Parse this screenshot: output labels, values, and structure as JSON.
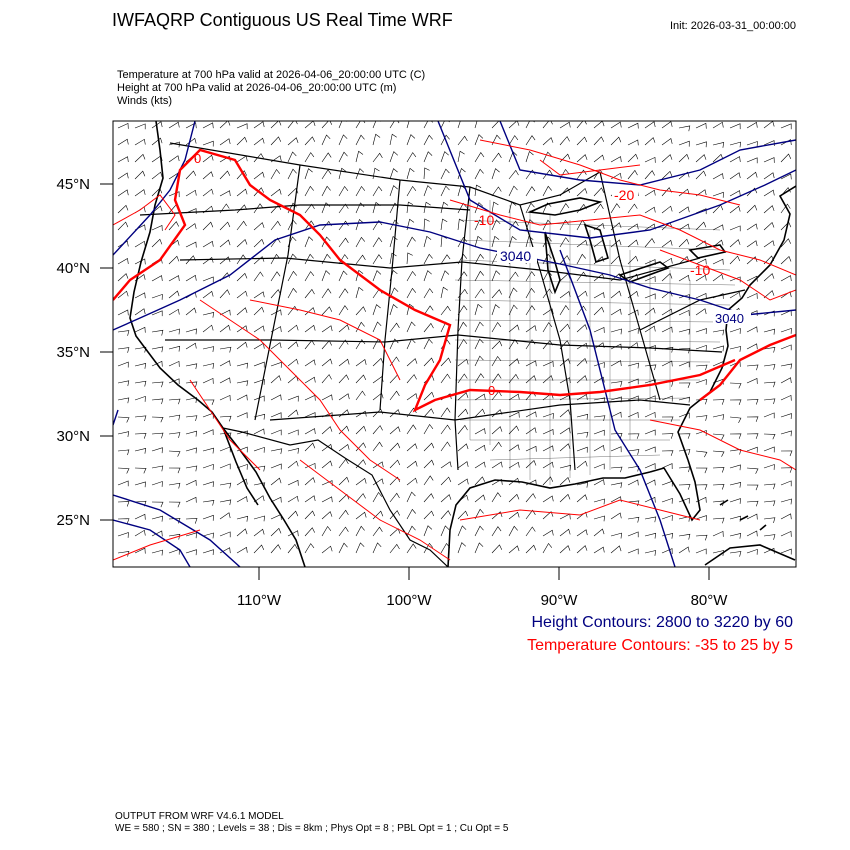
{
  "header": {
    "title": "IWFAQRP Contiguous US Real Time WRF",
    "init": "Init: 2026-03-31_00:00:00"
  },
  "fields": [
    "Temperature at 700 hPa valid at 2026-04-06_20:00:00 UTC   (C)",
    "Height at 700 hPa valid at 2026-04-06_20:00:00 UTC   (m)",
    "Winds   (kts)"
  ],
  "axes": {
    "lat_labels": [
      "45°N",
      "40°N",
      "35°N",
      "30°N",
      "25°N"
    ],
    "lon_labels": [
      "110°W",
      "100°W",
      "90°W",
      "80°W"
    ]
  },
  "contour_labels": {
    "height": [
      "3040",
      "3040"
    ],
    "temperature": [
      "-20",
      "-10",
      "-10",
      "0",
      "0"
    ]
  },
  "legend": {
    "height": "Height Contours: 2800 to 3220 by 60",
    "temperature": "Temperature Contours: -35 to 25 by 5"
  },
  "colors": {
    "height": "#000080",
    "temperature": "#ff0000",
    "border": "#000000",
    "background": "#ffffff"
  },
  "footer": {
    "line1": "OUTPUT FROM WRF V4.6.1 MODEL",
    "line2": "WE = 580 ; SN = 380 ; Levels = 38 ; Dis = 8km ; Phys Opt = 8 ; PBL Opt = 1 ; Cu Opt = 5"
  }
}
